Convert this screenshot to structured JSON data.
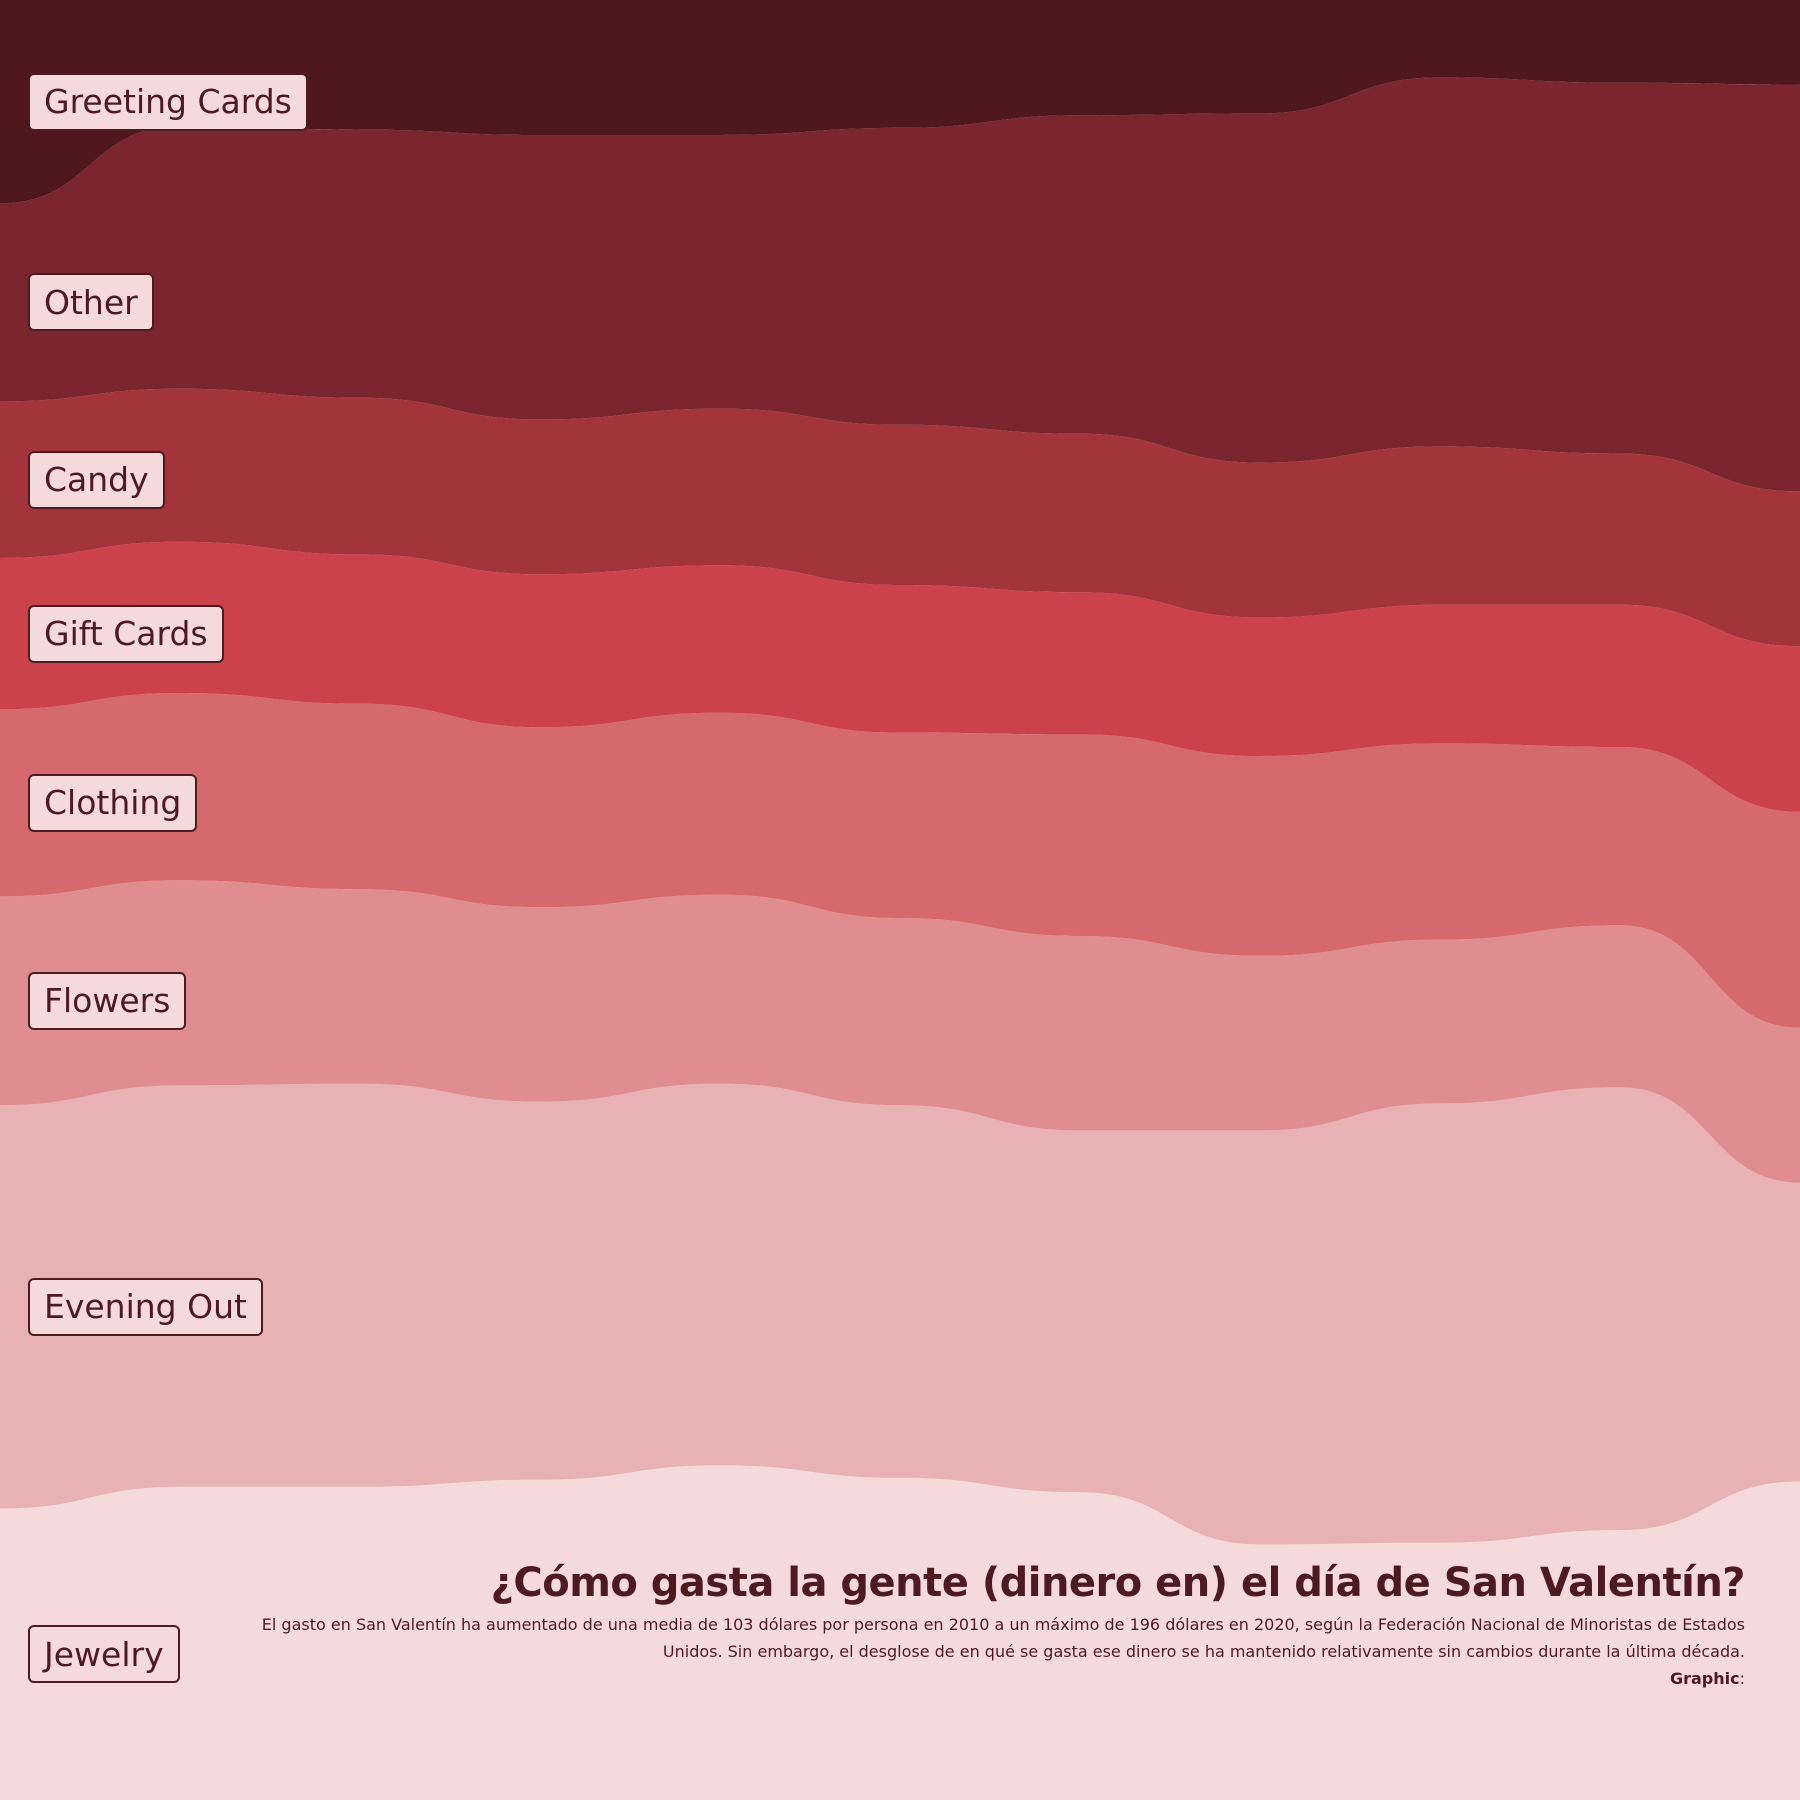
{
  "chart_data": {
    "type": "area",
    "subtype": "streamgraph-stacked-100",
    "title": "¿Cómo gasta la gente (dinero en) el día de San Valentín?",
    "subtitle": "El gasto en San Valentín ha aumentado de una media de 103 dólares por persona en 2010 a un máximo de 196 dólares en 2020, según la Federación Nacional de Minoristas de Estados Unidos. Sin embargo, el desglose de en qué se gasta ese dinero se ha mantenido relativamente sin cambios durante la última década.",
    "credit_label": "Graphic",
    "credit_value": ":",
    "x_points": 11,
    "x_axis_shown": false,
    "y_axis_shown": false,
    "grid": false,
    "legend": "inline labels at left edge",
    "series": [
      {
        "name": "Jewelry",
        "color": "#f5dadc",
        "values": [
          16.2,
          17.4,
          17.4,
          17.8,
          18.6,
          17.9,
          17.1,
          14.2,
          14.3,
          15.0,
          17.7
        ]
      },
      {
        "name": "Evening Out",
        "color": "#e8b1b4",
        "values": [
          22.4,
          22.3,
          22.4,
          21.0,
          21.2,
          20.7,
          20.1,
          23.0,
          24.4,
          24.6,
          16.6
        ]
      },
      {
        "name": "Flowers",
        "color": "#e08d92",
        "values": [
          11.6,
          11.4,
          10.8,
          10.8,
          10.5,
          10.4,
          10.8,
          9.7,
          9.1,
          9.0,
          8.6
        ]
      },
      {
        "name": "Clothing",
        "color": "#d6696d",
        "values": [
          10.4,
          10.4,
          10.3,
          10.0,
          10.1,
          10.3,
          11.2,
          11.1,
          10.9,
          9.9,
          12.0
        ]
      },
      {
        "name": "Gift Cards",
        "color": "#cb424b",
        "values": [
          8.4,
          8.4,
          8.3,
          8.5,
          8.2,
          8.2,
          7.9,
          7.7,
          7.7,
          7.9,
          9.2
        ]
      },
      {
        "name": "Candy",
        "color": "#a3343c",
        "values": [
          8.7,
          8.5,
          8.7,
          8.6,
          8.7,
          8.9,
          8.8,
          8.6,
          8.8,
          8.4,
          8.6
        ]
      },
      {
        "name": "Other",
        "color": "#7b262f",
        "values": [
          11.0,
          14.6,
          14.9,
          15.8,
          15.2,
          16.5,
          17.7,
          19.4,
          20.5,
          20.6,
          22.6
        ]
      },
      {
        "name": "Greeting Cards",
        "color": "#4e181d",
        "values": [
          11.3,
          7.0,
          7.2,
          7.5,
          7.5,
          8.1,
          6.4,
          6.3,
          4.3,
          4.6,
          4.7
        ]
      }
    ]
  }
}
